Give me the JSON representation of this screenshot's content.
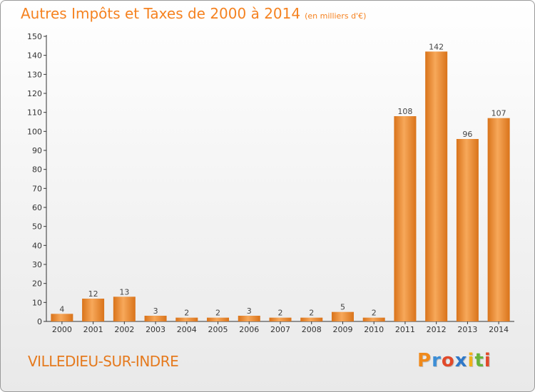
{
  "header": {
    "title": "Autres Impôts et Taxes de 2000 à 2014",
    "subtitle": "(en milliers d'€)"
  },
  "footer": {
    "city": "VILLEDIEU-SUR-INDRE",
    "logo": [
      "P",
      "r",
      "o",
      "x",
      "i",
      "t",
      "i"
    ]
  },
  "colors": {
    "accent": "#f58220",
    "bar_light": "#f7a85a",
    "bar_dark": "#d9731a",
    "axis": "#333333"
  },
  "chart_data": {
    "type": "bar",
    "title": "Autres Impôts et Taxes de 2000 à 2014",
    "subtitle": "(en milliers d'€)",
    "categories": [
      "2000",
      "2001",
      "2002",
      "2003",
      "2004",
      "2005",
      "2006",
      "2007",
      "2008",
      "2009",
      "2010",
      "2011",
      "2012",
      "2013",
      "2014"
    ],
    "values": [
      4,
      12,
      13,
      3,
      2,
      2,
      3,
      2,
      2,
      5,
      2,
      108,
      142,
      96,
      107
    ],
    "ylim": [
      0,
      150
    ],
    "yticks": [
      0,
      10,
      20,
      30,
      40,
      50,
      60,
      70,
      80,
      90,
      100,
      110,
      120,
      130,
      140,
      150
    ],
    "xlabel": "",
    "ylabel": "",
    "grid": false,
    "data_labels": true
  }
}
